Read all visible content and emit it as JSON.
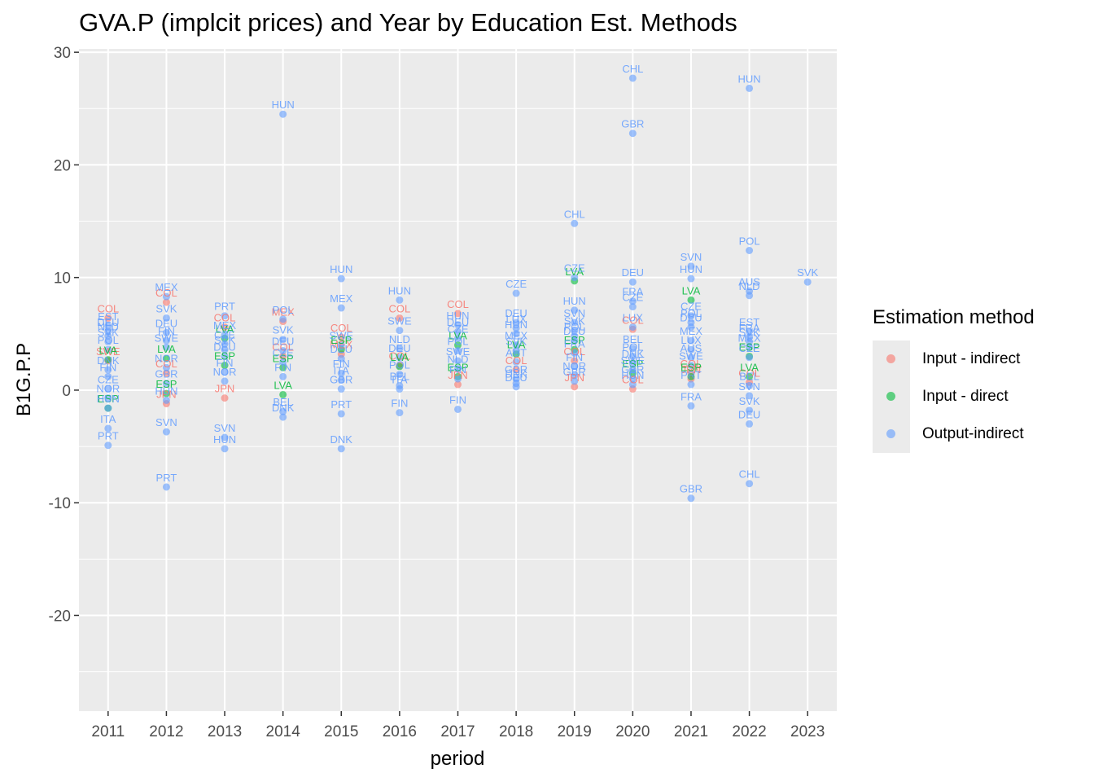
{
  "chart_data": {
    "type": "scatter",
    "title": "GVA.P (implcit prices) and Year by Education Est. Methods",
    "xlabel": "period",
    "ylabel": "B1G.P.P",
    "categories": [
      "2011",
      "2012",
      "2013",
      "2014",
      "2015",
      "2016",
      "2017",
      "2018",
      "2019",
      "2020",
      "2021",
      "2022",
      "2023"
    ],
    "ylim": [
      -28.5,
      30.3
    ],
    "yticks": [
      -20,
      -10,
      0,
      10,
      20,
      30
    ],
    "grid": true,
    "legend_title": "Estimation method",
    "legend_position": "right",
    "series": [
      {
        "name": "Input - indirect",
        "color": "#F8766D",
        "points": [
          {
            "x": "2011",
            "y": 6.4,
            "label": "COL"
          },
          {
            "x": "2011",
            "y": 2.6,
            "label": "SWE"
          },
          {
            "x": "2012",
            "y": 7.8,
            "label": "COL"
          },
          {
            "x": "2012",
            "y": 1.5,
            "label": "COL"
          },
          {
            "x": "2012",
            "y": -1.2,
            "label": "JPN"
          },
          {
            "x": "2013",
            "y": 5.6,
            "label": "COL"
          },
          {
            "x": "2013",
            "y": -0.7,
            "label": "JPN"
          },
          {
            "x": "2014",
            "y": 6.1,
            "label": "MEX"
          },
          {
            "x": "2014",
            "y": 3.0,
            "label": "COL"
          },
          {
            "x": "2015",
            "y": 4.7,
            "label": "COL"
          },
          {
            "x": "2015",
            "y": 3.2,
            "label": "MEX"
          },
          {
            "x": "2016",
            "y": 6.4,
            "label": "COL"
          },
          {
            "x": "2016",
            "y": 2.2,
            "label": "COL"
          },
          {
            "x": "2017",
            "y": 6.8,
            "label": "COL"
          },
          {
            "x": "2017",
            "y": 0.5,
            "label": "JPN"
          },
          {
            "x": "2018",
            "y": 1.8,
            "label": "COL"
          },
          {
            "x": "2019",
            "y": 2.6,
            "label": "COL"
          },
          {
            "x": "2019",
            "y": 0.3,
            "label": "JPN"
          },
          {
            "x": "2020",
            "y": 5.4,
            "label": "COL"
          },
          {
            "x": "2020",
            "y": 0.1,
            "label": "COL"
          },
          {
            "x": "2021",
            "y": 1.5,
            "label": "COL"
          },
          {
            "x": "2021",
            "y": 1.0,
            "label": "JPN"
          },
          {
            "x": "2022",
            "y": 0.7,
            "label": "COL"
          }
        ]
      },
      {
        "name": "Input - direct",
        "color": "#00BA38",
        "points": [
          {
            "x": "2011",
            "y": 2.7,
            "label": "LVA"
          },
          {
            "x": "2011",
            "y": -1.6,
            "label": "ESP"
          },
          {
            "x": "2012",
            "y": 2.8,
            "label": "LVA"
          },
          {
            "x": "2012",
            "y": -0.3,
            "label": "ESP"
          },
          {
            "x": "2013",
            "y": 4.6,
            "label": "LVA"
          },
          {
            "x": "2013",
            "y": 2.2,
            "label": "ESP"
          },
          {
            "x": "2014",
            "y": 2.0,
            "label": "ESP"
          },
          {
            "x": "2014",
            "y": -0.4,
            "label": "LVA"
          },
          {
            "x": "2015",
            "y": 3.6,
            "label": "ESP"
          },
          {
            "x": "2016",
            "y": 2.1,
            "label": "LVA"
          },
          {
            "x": "2017",
            "y": 4.0,
            "label": "LVA"
          },
          {
            "x": "2017",
            "y": 1.2,
            "label": "ESP"
          },
          {
            "x": "2018",
            "y": 3.2,
            "label": "LVA"
          },
          {
            "x": "2019",
            "y": 9.7,
            "label": "LVA"
          },
          {
            "x": "2019",
            "y": 3.6,
            "label": "ESP"
          },
          {
            "x": "2020",
            "y": 1.5,
            "label": "ESP"
          },
          {
            "x": "2021",
            "y": 8.0,
            "label": "LVA"
          },
          {
            "x": "2021",
            "y": 1.2,
            "label": "ESP"
          },
          {
            "x": "2022",
            "y": 3.0,
            "label": "ESP"
          },
          {
            "x": "2022",
            "y": 1.2,
            "label": "LVA"
          }
        ]
      },
      {
        "name": "Output-indirect",
        "color": "#619CFF",
        "points": [
          {
            "x": "2011",
            "y": 5.7,
            "label": "EST"
          },
          {
            "x": "2011",
            "y": 5.2,
            "label": "DEU"
          },
          {
            "x": "2011",
            "y": 4.8,
            "label": "NLD"
          },
          {
            "x": "2011",
            "y": 4.3,
            "label": "SVK"
          },
          {
            "x": "2011",
            "y": 3.6,
            "label": "POL"
          },
          {
            "x": "2011",
            "y": 1.8,
            "label": "DNK"
          },
          {
            "x": "2011",
            "y": 1.2,
            "label": "FIN"
          },
          {
            "x": "2011",
            "y": 0.1,
            "label": "CZE"
          },
          {
            "x": "2011",
            "y": -0.7,
            "label": "NOR"
          },
          {
            "x": "2011",
            "y": -1.6,
            "label": "HUN"
          },
          {
            "x": "2011",
            "y": -3.4,
            "label": "ITA"
          },
          {
            "x": "2011",
            "y": -4.9,
            "label": "PRT"
          },
          {
            "x": "2012",
            "y": 8.3,
            "label": "MEX"
          },
          {
            "x": "2012",
            "y": 6.4,
            "label": "SVK"
          },
          {
            "x": "2012",
            "y": 5.1,
            "label": "DEU"
          },
          {
            "x": "2012",
            "y": 4.4,
            "label": "FIN"
          },
          {
            "x": "2012",
            "y": 3.8,
            "label": "SWE"
          },
          {
            "x": "2012",
            "y": 2.0,
            "label": "NOR"
          },
          {
            "x": "2012",
            "y": 0.6,
            "label": "GBR"
          },
          {
            "x": "2012",
            "y": -0.9,
            "label": "HUN"
          },
          {
            "x": "2012",
            "y": -3.7,
            "label": "SVN"
          },
          {
            "x": "2012",
            "y": -8.6,
            "label": "PRT"
          },
          {
            "x": "2013",
            "y": 6.6,
            "label": "PRT"
          },
          {
            "x": "2013",
            "y": 4.9,
            "label": "MEX"
          },
          {
            "x": "2013",
            "y": 4.1,
            "label": "CZE"
          },
          {
            "x": "2013",
            "y": 3.6,
            "label": "SVK"
          },
          {
            "x": "2013",
            "y": 3.0,
            "label": "DEU"
          },
          {
            "x": "2013",
            "y": 1.6,
            "label": "FIN"
          },
          {
            "x": "2013",
            "y": 0.8,
            "label": "NOR"
          },
          {
            "x": "2013",
            "y": -4.2,
            "label": "SVN"
          },
          {
            "x": "2013",
            "y": -5.2,
            "label": "HUN"
          },
          {
            "x": "2014",
            "y": 24.5,
            "label": "HUN"
          },
          {
            "x": "2014",
            "y": 6.3,
            "label": "POL"
          },
          {
            "x": "2014",
            "y": 4.5,
            "label": "SVK"
          },
          {
            "x": "2014",
            "y": 3.5,
            "label": "DEU"
          },
          {
            "x": "2014",
            "y": 2.5,
            "label": "CZE"
          },
          {
            "x": "2014",
            "y": 1.2,
            "label": "FIN"
          },
          {
            "x": "2014",
            "y": -1.9,
            "label": "BEL"
          },
          {
            "x": "2014",
            "y": -2.4,
            "label": "DNK"
          },
          {
            "x": "2015",
            "y": 9.9,
            "label": "HUN"
          },
          {
            "x": "2015",
            "y": 7.3,
            "label": "MEX"
          },
          {
            "x": "2015",
            "y": 4.0,
            "label": "SWE"
          },
          {
            "x": "2015",
            "y": 2.8,
            "label": "DEU"
          },
          {
            "x": "2015",
            "y": 1.5,
            "label": "FIN"
          },
          {
            "x": "2015",
            "y": 0.9,
            "label": "ITA"
          },
          {
            "x": "2015",
            "y": 0.1,
            "label": "GBR"
          },
          {
            "x": "2015",
            "y": -2.1,
            "label": "PRT"
          },
          {
            "x": "2015",
            "y": -5.2,
            "label": "DNK"
          },
          {
            "x": "2016",
            "y": 8.0,
            "label": "HUN"
          },
          {
            "x": "2016",
            "y": 5.3,
            "label": "SWE"
          },
          {
            "x": "2016",
            "y": 3.7,
            "label": "NLD"
          },
          {
            "x": "2016",
            "y": 2.9,
            "label": "DEU"
          },
          {
            "x": "2016",
            "y": 1.4,
            "label": "POL"
          },
          {
            "x": "2016",
            "y": 0.4,
            "label": "BEL"
          },
          {
            "x": "2016",
            "y": 0.1,
            "label": "ITA"
          },
          {
            "x": "2016",
            "y": -2.0,
            "label": "FIN"
          },
          {
            "x": "2017",
            "y": 5.8,
            "label": "HUN"
          },
          {
            "x": "2017",
            "y": 5.2,
            "label": "DEU"
          },
          {
            "x": "2017",
            "y": 4.6,
            "label": "CZE"
          },
          {
            "x": "2017",
            "y": 3.5,
            "label": "POL"
          },
          {
            "x": "2017",
            "y": 2.6,
            "label": "SWE"
          },
          {
            "x": "2017",
            "y": 1.9,
            "label": "NLD"
          },
          {
            "x": "2017",
            "y": 1.0,
            "label": "FIN"
          },
          {
            "x": "2017",
            "y": -1.7,
            "label": "FIN"
          },
          {
            "x": "2018",
            "y": 8.6,
            "label": "CZE"
          },
          {
            "x": "2018",
            "y": 6.0,
            "label": "DEU"
          },
          {
            "x": "2018",
            "y": 5.5,
            "label": "LUX"
          },
          {
            "x": "2018",
            "y": 5.0,
            "label": "HUN"
          },
          {
            "x": "2018",
            "y": 4.0,
            "label": "MEX"
          },
          {
            "x": "2018",
            "y": 3.5,
            "label": "SVK"
          },
          {
            "x": "2018",
            "y": 2.5,
            "label": "AUT"
          },
          {
            "x": "2018",
            "y": 1.0,
            "label": "GBR"
          },
          {
            "x": "2018",
            "y": 0.6,
            "label": "DNK"
          },
          {
            "x": "2018",
            "y": 0.3,
            "label": "DEU"
          },
          {
            "x": "2019",
            "y": 14.8,
            "label": "CHL"
          },
          {
            "x": "2019",
            "y": 10.0,
            "label": "CZE"
          },
          {
            "x": "2019",
            "y": 7.1,
            "label": "HUN"
          },
          {
            "x": "2019",
            "y": 6.0,
            "label": "SVN"
          },
          {
            "x": "2019",
            "y": 5.3,
            "label": "SVK"
          },
          {
            "x": "2019",
            "y": 4.8,
            "label": "POL"
          },
          {
            "x": "2019",
            "y": 4.4,
            "label": "DEU"
          },
          {
            "x": "2019",
            "y": 3.3,
            "label": "FRA"
          },
          {
            "x": "2019",
            "y": 2.1,
            "label": "FIN"
          },
          {
            "x": "2019",
            "y": 1.3,
            "label": "NOR"
          },
          {
            "x": "2019",
            "y": 0.8,
            "label": "GBR"
          },
          {
            "x": "2020",
            "y": 27.7,
            "label": "CHL"
          },
          {
            "x": "2020",
            "y": 22.8,
            "label": "GBR"
          },
          {
            "x": "2020",
            "y": 9.6,
            "label": "DEU"
          },
          {
            "x": "2020",
            "y": 7.9,
            "label": "FRA"
          },
          {
            "x": "2020",
            "y": 7.4,
            "label": "CZE"
          },
          {
            "x": "2020",
            "y": 5.6,
            "label": "LUX"
          },
          {
            "x": "2020",
            "y": 3.7,
            "label": "BEL"
          },
          {
            "x": "2020",
            "y": 3.0,
            "label": "POL"
          },
          {
            "x": "2020",
            "y": 2.4,
            "label": "DNK"
          },
          {
            "x": "2020",
            "y": 1.8,
            "label": "SWE"
          },
          {
            "x": "2020",
            "y": 1.0,
            "label": "GBR"
          },
          {
            "x": "2020",
            "y": 0.5,
            "label": "HUN"
          },
          {
            "x": "2021",
            "y": 11.0,
            "label": "SVN"
          },
          {
            "x": "2021",
            "y": 9.9,
            "label": "HUN"
          },
          {
            "x": "2021",
            "y": 6.6,
            "label": "CZE"
          },
          {
            "x": "2021",
            "y": 6.0,
            "label": "POL"
          },
          {
            "x": "2021",
            "y": 5.6,
            "label": "DEU"
          },
          {
            "x": "2021",
            "y": 4.4,
            "label": "MEX"
          },
          {
            "x": "2021",
            "y": 3.6,
            "label": "LUX"
          },
          {
            "x": "2021",
            "y": 2.9,
            "label": "AUS"
          },
          {
            "x": "2021",
            "y": 2.2,
            "label": "SWE"
          },
          {
            "x": "2021",
            "y": 0.5,
            "label": "PRT"
          },
          {
            "x": "2021",
            "y": -1.4,
            "label": "FRA"
          },
          {
            "x": "2021",
            "y": -9.6,
            "label": "GBR"
          },
          {
            "x": "2022",
            "y": 26.8,
            "label": "HUN"
          },
          {
            "x": "2022",
            "y": 12.4,
            "label": "POL"
          },
          {
            "x": "2022",
            "y": 8.8,
            "label": "AUS"
          },
          {
            "x": "2022",
            "y": 8.4,
            "label": "NLD"
          },
          {
            "x": "2022",
            "y": 5.2,
            "label": "EST"
          },
          {
            "x": "2022",
            "y": 4.7,
            "label": "FRA"
          },
          {
            "x": "2022",
            "y": 4.3,
            "label": "SVK"
          },
          {
            "x": "2022",
            "y": 3.8,
            "label": "MEX"
          },
          {
            "x": "2022",
            "y": 2.9,
            "label": "CZE"
          },
          {
            "x": "2022",
            "y": 0.4,
            "label": "BEL"
          },
          {
            "x": "2022",
            "y": -0.5,
            "label": "SVN"
          },
          {
            "x": "2022",
            "y": -1.8,
            "label": "SVK"
          },
          {
            "x": "2022",
            "y": -3.0,
            "label": "DEU"
          },
          {
            "x": "2022",
            "y": -8.3,
            "label": "CHL"
          },
          {
            "x": "2023",
            "y": 9.6,
            "label": "SVK"
          }
        ]
      }
    ]
  }
}
